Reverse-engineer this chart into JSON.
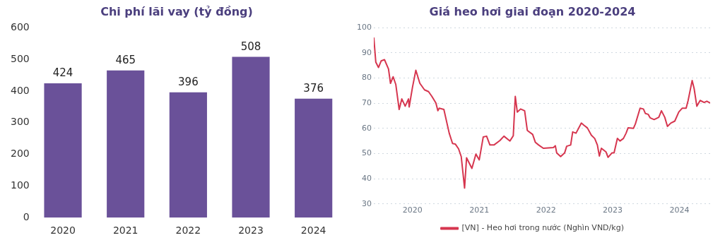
{
  "chart_data": [
    {
      "type": "bar",
      "title": "Chi phí lãi vay (tỷ đồng)",
      "categories": [
        "2020",
        "2021",
        "2022",
        "2023",
        "2024"
      ],
      "values": [
        424,
        465,
        396,
        508,
        376
      ],
      "color": "#6a5199",
      "ylim": [
        0,
        600
      ],
      "yticks": [
        0,
        100,
        200,
        300,
        400,
        500,
        600
      ],
      "grid": false,
      "data_labels": true,
      "legend": false
    },
    {
      "type": "line",
      "title": "Giá heo hơi giai đoạn 2020-2024",
      "x": [
        2019.42,
        2019.45,
        2019.49,
        2019.53,
        2019.58,
        2019.64,
        2019.67,
        2019.71,
        2019.75,
        2019.8,
        2019.84,
        2019.89,
        2019.94,
        2019.95,
        2020.0,
        2020.05,
        2020.11,
        2020.18,
        2020.24,
        2020.29,
        2020.35,
        2020.38,
        2020.4,
        2020.47,
        2020.55,
        2020.6,
        2020.64,
        2020.69,
        2020.73,
        2020.78,
        2020.81,
        2020.89,
        2020.95,
        2021.0,
        2021.06,
        2021.11,
        2021.16,
        2021.22,
        2021.31,
        2021.37,
        2021.46,
        2021.51,
        2021.54,
        2021.57,
        2021.62,
        2021.68,
        2021.72,
        2021.8,
        2021.84,
        2021.89,
        2021.96,
        2022.11,
        2022.14,
        2022.16,
        2022.22,
        2022.28,
        2022.31,
        2022.37,
        2022.4,
        2022.45,
        2022.53,
        2022.57,
        2022.62,
        2022.68,
        2022.73,
        2022.77,
        2022.8,
        2022.83,
        2022.9,
        2022.93,
        2022.99,
        2023.02,
        2023.07,
        2023.11,
        2023.16,
        2023.2,
        2023.23,
        2023.31,
        2023.34,
        2023.41,
        2023.46,
        2023.49,
        2023.53,
        2023.56,
        2023.62,
        2023.69,
        2023.73,
        2023.78,
        2023.82,
        2023.87,
        2023.93,
        2023.99,
        2024.04,
        2024.1,
        2024.13,
        2024.19,
        2024.22,
        2024.26,
        2024.31,
        2024.37,
        2024.41,
        2024.46
      ],
      "series": [
        {
          "name": "[VN] - Heo hơi trong nước (Nghìn VND/kg)",
          "color": "#d6364f",
          "values": [
            96.1,
            86.3,
            84.2,
            86.8,
            87.3,
            83.6,
            77.9,
            80.5,
            77.4,
            67.5,
            71.7,
            68.8,
            71.7,
            68.5,
            76.4,
            83.1,
            77.9,
            75.3,
            74.6,
            72.7,
            70.1,
            67.0,
            68.0,
            67.5,
            58.1,
            54.0,
            53.8,
            51.9,
            48.8,
            36.3,
            48.3,
            44.1,
            49.8,
            47.5,
            56.6,
            56.9,
            53.4,
            53.4,
            55.2,
            56.9,
            55.0,
            57.1,
            72.7,
            66.5,
            67.7,
            67.0,
            59.2,
            57.6,
            54.5,
            53.4,
            52.1,
            52.4,
            53.1,
            50.3,
            48.8,
            50.3,
            52.9,
            53.4,
            58.6,
            58.1,
            62.1,
            61.2,
            60.2,
            57.3,
            56.0,
            53.4,
            49.0,
            52.1,
            50.6,
            48.5,
            50.3,
            50.3,
            56.0,
            55.0,
            56.0,
            58.1,
            60.2,
            60.0,
            61.8,
            68.0,
            67.7,
            65.9,
            65.6,
            64.2,
            63.5,
            64.4,
            67.0,
            64.4,
            60.8,
            62.1,
            62.9,
            66.5,
            68.0,
            68.0,
            71.1,
            79.0,
            75.8,
            68.8,
            71.1,
            70.3,
            70.8,
            70.1
          ]
        }
      ],
      "xlim": [
        2019.42,
        2024.46
      ],
      "xticks": [
        2020,
        2021,
        2022,
        2023,
        2024
      ],
      "ylim": [
        30,
        100
      ],
      "yticks": [
        30,
        40,
        50,
        60,
        70,
        80,
        90,
        100
      ],
      "grid": "y",
      "legend": "bottom",
      "marker": "none",
      "line_style": "solid"
    }
  ]
}
